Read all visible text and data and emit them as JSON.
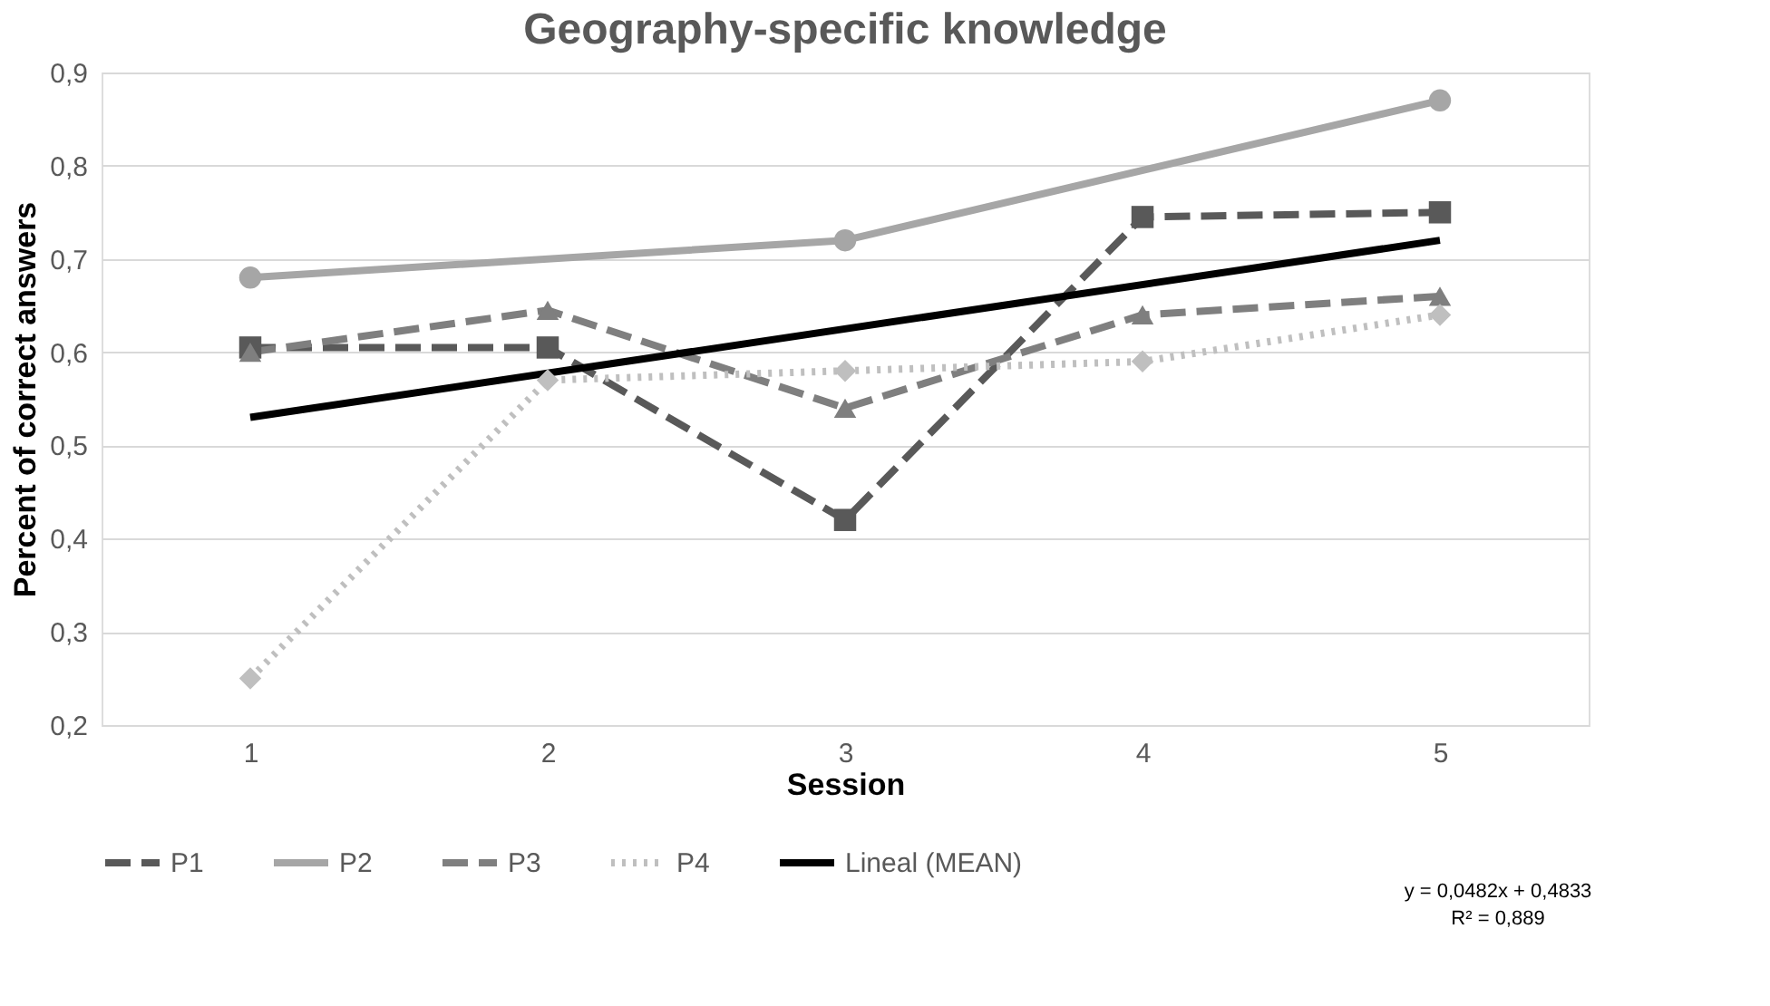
{
  "chart_data": {
    "type": "line",
    "title": "Geography-specific knowledge",
    "xlabel": "Session",
    "ylabel": "Percent of correct answers",
    "x": [
      1,
      2,
      3,
      4,
      5
    ],
    "xlim": [
      0.5,
      5.5
    ],
    "xticks": [
      1,
      2,
      3,
      4,
      5
    ],
    "ylim": [
      0.2,
      0.9
    ],
    "yticks": [
      {
        "value": 0.2,
        "label": "0,2"
      },
      {
        "value": 0.3,
        "label": "0,3"
      },
      {
        "value": 0.4,
        "label": "0,4"
      },
      {
        "value": 0.5,
        "label": "0,5"
      },
      {
        "value": 0.6,
        "label": "0,6"
      },
      {
        "value": 0.7,
        "label": "0,7"
      },
      {
        "value": 0.8,
        "label": "0,8"
      },
      {
        "value": 0.9,
        "label": "0,9"
      }
    ],
    "grid": "y",
    "legend": "bottom",
    "series": [
      {
        "name": "P1",
        "color": "#595959",
        "marker": "square",
        "line_style": "dashed",
        "values": [
          0.605,
          0.605,
          0.42,
          0.745,
          0.75
        ]
      },
      {
        "name": "P2",
        "color": "#a6a6a6",
        "marker": "circle",
        "line_style": "solid",
        "x": [
          1,
          3,
          5
        ],
        "values": [
          0.68,
          0.72,
          0.87
        ]
      },
      {
        "name": "P3",
        "color": "#7f7f7f",
        "marker": "triangle",
        "line_style": "dashed",
        "values": [
          0.6,
          0.645,
          0.54,
          0.64,
          0.66
        ]
      },
      {
        "name": "P4",
        "color": "#bfbfbf",
        "marker": "diamond",
        "line_style": "dotted",
        "values": [
          0.25,
          0.57,
          0.58,
          0.59,
          0.64
        ]
      },
      {
        "name": "Lineal (MEAN)",
        "color": "#000000",
        "marker": "none",
        "line_style": "solid",
        "x": [
          1,
          5
        ],
        "values": [
          0.53,
          0.72
        ]
      }
    ],
    "annotations": [
      "y = 0,0482x + 0,4833",
      "R² = 0,889"
    ]
  }
}
